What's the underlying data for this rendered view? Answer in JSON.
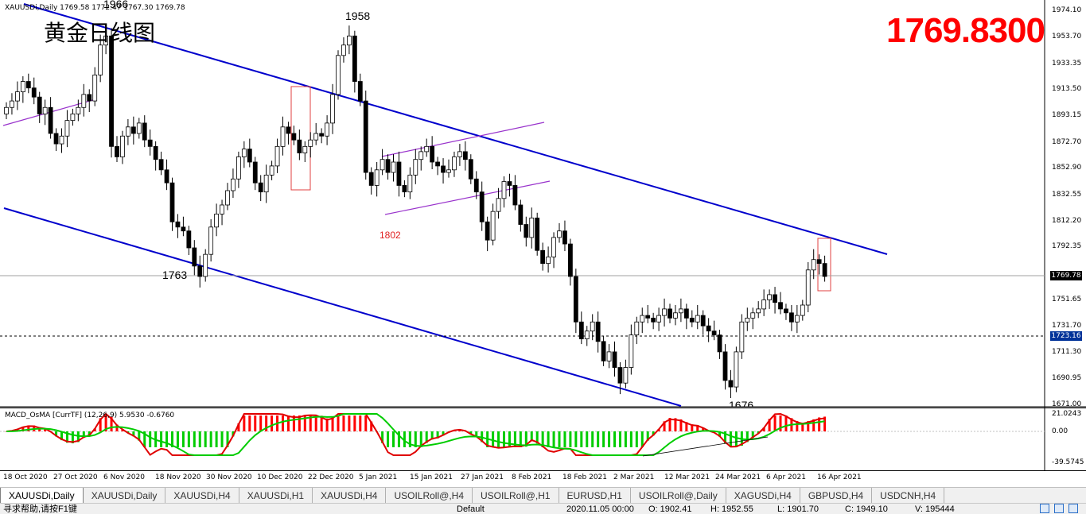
{
  "header": {
    "ohlc": "XAUUSDi,Daily  1769.58 1772.47 1767.30 1769.78",
    "chinese_title": "黄金日线图",
    "big_price": "1769.8300"
  },
  "annotations": {
    "top_cut": "1966",
    "high_1958": "1958",
    "low_1763": "1763",
    "level_1802": "1802",
    "bottom_cut": "1676"
  },
  "price_axis": {
    "labels": [
      "1974.10",
      "1953.70",
      "1933.35",
      "1913.50",
      "1893.15",
      "1872.70",
      "1852.90",
      "1832.55",
      "1812.20",
      "1792.35",
      "1751.65",
      "1731.70",
      "1711.30",
      "1690.95",
      "1671.00"
    ],
    "current_price": "1769.78",
    "line_price": "1723.16"
  },
  "macd": {
    "header": "MACD_OsMA [CurrTF] (12,26,9) 5.9530 -0.6760",
    "axis_labels": [
      "21.0243",
      "0.00",
      "-39.5745"
    ]
  },
  "time_axis": {
    "labels": [
      "18 Oct 2020",
      "27 Oct 2020",
      "6 Nov 2020",
      "18 Nov 2020",
      "30 Nov 2020",
      "10 Dec 2020",
      "22 Dec 2020",
      "5 Jan 2021",
      "15 Jan 2021",
      "27 Jan 2021",
      "8 Feb 2021",
      "18 Feb 2021",
      "2 Mar 2021",
      "12 Mar 2021",
      "24 Mar 2021",
      "6 Apr 2021",
      "16 Apr 2021"
    ]
  },
  "tabs": [
    "XAUUSDi,Daily",
    "XAUUSDi,Daily",
    "XAUUSDi,H4",
    "XAUUSDi,H1",
    "XAUUSDi,H4",
    "USOILRoll@,H4",
    "USOILRoll@,H1",
    "EURUSD,H1",
    "USOILRoll@,Daily",
    "XAGUSDi,H4",
    "GBPUSD,H4",
    "USDCNH,H4"
  ],
  "status": {
    "help": "寻求帮助,请按F1键",
    "profile": "Default",
    "datetime": "2020.11.05 00:00",
    "open": "O: 1902.41",
    "high": "H: 1952.55",
    "low": "L: 1901.70",
    "close": "C: 1949.10",
    "volume": "V: 195444"
  },
  "colors": {
    "bull": "#ffffff",
    "bear": "#000000",
    "channel": "#0000cc",
    "flag": "#9933cc",
    "box": "#e04040",
    "macd_up": "#ff0000",
    "macd_down": "#00cc00"
  },
  "chart_data": {
    "type": "candlestick",
    "symbol": "XAUUSDi",
    "timeframe": "Daily",
    "ylim": [
      1671.0,
      1974.1
    ],
    "closes": [
      1900,
      1905,
      1912,
      1920,
      1915,
      1908,
      1895,
      1900,
      1880,
      1872,
      1878,
      1890,
      1895,
      1900,
      1910,
      1905,
      1925,
      1948,
      1955,
      1870,
      1862,
      1878,
      1885,
      1880,
      1888,
      1875,
      1870,
      1860,
      1852,
      1842,
      1812,
      1808,
      1805,
      1792,
      1778,
      1770,
      1787,
      1808,
      1818,
      1825,
      1836,
      1845,
      1862,
      1868,
      1858,
      1842,
      1835,
      1848,
      1855,
      1870,
      1885,
      1880,
      1875,
      1865,
      1870,
      1875,
      1880,
      1878,
      1888,
      1910,
      1940,
      1948,
      1955,
      1920,
      1905,
      1850,
      1840,
      1852,
      1860,
      1850,
      1858,
      1840,
      1835,
      1848,
      1860,
      1866,
      1870,
      1858,
      1855,
      1850,
      1852,
      1862,
      1866,
      1860,
      1845,
      1835,
      1812,
      1798,
      1820,
      1830,
      1843,
      1840,
      1825,
      1810,
      1800,
      1815,
      1790,
      1780,
      1785,
      1800,
      1805,
      1795,
      1770,
      1735,
      1722,
      1728,
      1735,
      1720,
      1705,
      1712,
      1700,
      1688,
      1700,
      1725,
      1735,
      1740,
      1738,
      1735,
      1740,
      1745,
      1738,
      1742,
      1745,
      1738,
      1735,
      1740,
      1732,
      1728,
      1725,
      1712,
      1690,
      1685,
      1712,
      1735,
      1738,
      1742,
      1745,
      1752,
      1756,
      1750,
      1745,
      1742,
      1735,
      1740,
      1748,
      1775,
      1783,
      1780,
      1770
    ],
    "price_lines": [
      1769.78,
      1723.16
    ],
    "annotated_levels": [
      1958,
      1763,
      1802
    ]
  }
}
